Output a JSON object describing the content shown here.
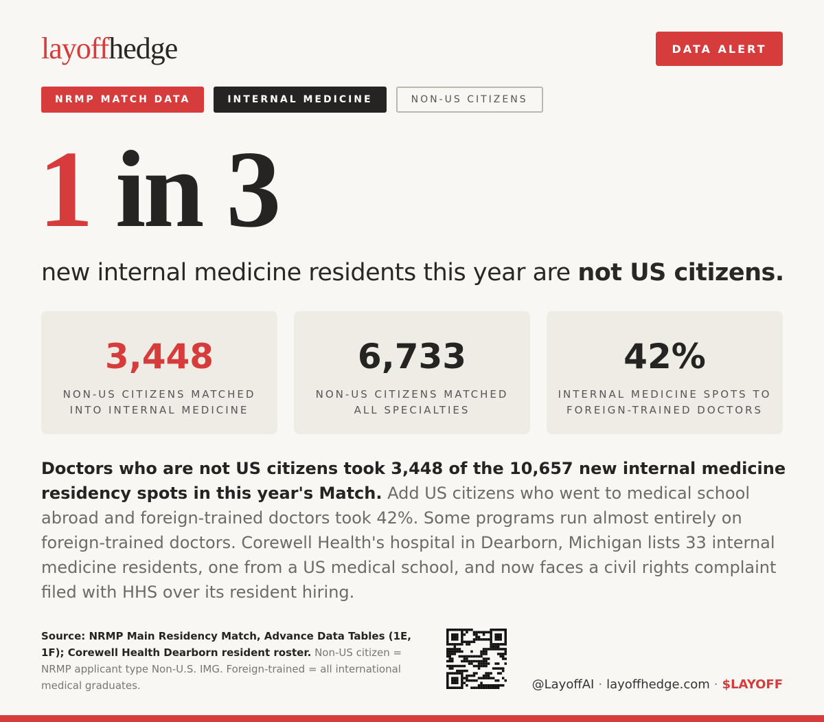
{
  "brand": {
    "accent": "layoff",
    "rest": "hedge"
  },
  "badge": "DATA ALERT",
  "tags": [
    "NRMP MATCH DATA",
    "INTERNAL MEDICINE",
    "NON-US CITIZENS"
  ],
  "headline": {
    "accent": "1",
    "rest": "in 3"
  },
  "subhead": {
    "text": "new internal medicine residents this year are",
    "emphasis": "not US citizens."
  },
  "stats": [
    {
      "value": "3,448",
      "label": [
        "NON-US CITIZENS MATCHED",
        "INTO INTERNAL MEDICINE"
      ]
    },
    {
      "value": "6,733",
      "label": [
        "NON-US CITIZENS MATCHED",
        "ALL SPECIALTIES"
      ]
    },
    {
      "value": "42%",
      "label": [
        "INTERNAL MEDICINE SPOTS TO",
        "FOREIGN-TRAINED DOCTORS"
      ]
    }
  ],
  "body": {
    "lead": "Doctors who are not US citizens took 3,448 of the 10,657 new internal medicine residency spots in this year's Match.",
    "rest": "Add US citizens who went to medical school abroad and foreign-trained doctors took 42%. Some programs run almost entirely on foreign-trained doctors. Corewell Health's hospital in Dearborn, Michigan lists 33 internal medicine residents, one from a US medical school, and now faces a civil rights complaint filed with HHS over its resident hiring."
  },
  "source": {
    "lead": "Source: NRMP Main Residency Match, Advance Data Tables (1E, 1F); Corewell Health Dearborn resident roster.",
    "rest": "Non-US citizen = NRMP applicant type Non-U.S. IMG. Foreign-trained = all international medical graduates."
  },
  "footer": {
    "handle": "@LayoffAI",
    "separator": "·",
    "site": "layoffhedge.com",
    "ticker": "$LAYOFF"
  }
}
